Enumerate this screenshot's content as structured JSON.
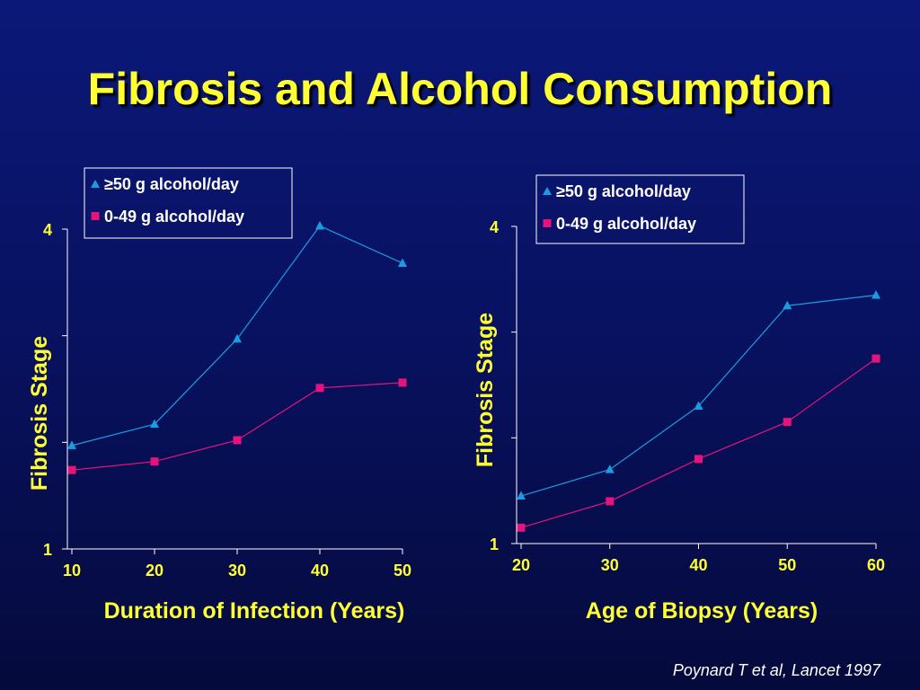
{
  "title": "Fibrosis and Alcohol Consumption",
  "citation": "Poynard T et al, Lancet 1997",
  "colors": {
    "high": "#1a9de0",
    "low": "#e6137d",
    "text": "#ffff33",
    "axis": "#ffffff"
  },
  "chart_data": [
    {
      "type": "line",
      "xlabel": "Duration of Infection (Years)",
      "ylabel": "Fibrosis Stage",
      "x": [
        10,
        20,
        30,
        40,
        50
      ],
      "x_ticks": [
        "10",
        "20",
        "30",
        "40",
        "50"
      ],
      "xlim": [
        10,
        50
      ],
      "ylim": [
        1,
        4
      ],
      "y_tick_labels": [
        "1",
        "4"
      ],
      "grid": false,
      "legend_position": "top-right",
      "series": [
        {
          "name": "≥50 g alcohol/day",
          "marker": "triangle",
          "color": "#1a9de0",
          "values": [
            1.97,
            2.17,
            2.97,
            4.03,
            3.68
          ]
        },
        {
          "name": "0-49 g alcohol/day",
          "marker": "square",
          "color": "#e6137d",
          "values": [
            1.74,
            1.82,
            2.02,
            2.51,
            2.56
          ]
        }
      ]
    },
    {
      "type": "line",
      "xlabel": "Age of Biopsy (Years)",
      "ylabel": "Fibrosis Stage",
      "x": [
        20,
        30,
        40,
        50,
        60
      ],
      "x_ticks": [
        "20",
        "30",
        "40",
        "50",
        "60"
      ],
      "xlim": [
        20,
        60
      ],
      "ylim": [
        1,
        4
      ],
      "y_tick_labels": [
        "1",
        "4"
      ],
      "grid": false,
      "legend_position": "top-right",
      "series": [
        {
          "name": "≥50 g alcohol/day",
          "marker": "triangle",
          "color": "#1a9de0",
          "values": [
            1.45,
            1.7,
            2.3,
            3.25,
            3.35
          ]
        },
        {
          "name": "0-49 g alcohol/day",
          "marker": "square",
          "color": "#e6137d",
          "values": [
            1.15,
            1.4,
            1.8,
            2.15,
            2.75
          ]
        }
      ]
    }
  ]
}
